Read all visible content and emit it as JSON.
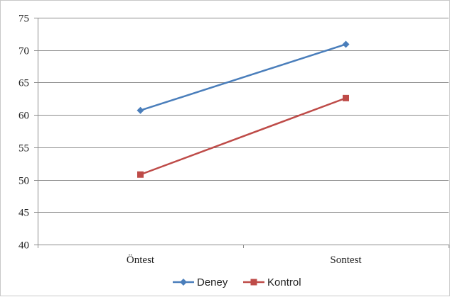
{
  "chart_data": {
    "type": "line",
    "categories": [
      "Öntest",
      "Sontest"
    ],
    "series": [
      {
        "name": "Deney",
        "values": [
          60.7,
          70.9
        ],
        "color": "#4a7ebb",
        "marker": "diamond"
      },
      {
        "name": "Kontrol",
        "values": [
          50.8,
          62.6
        ],
        "color": "#be4b48",
        "marker": "square"
      }
    ],
    "ylim": [
      40,
      75
    ],
    "yticks": [
      40,
      45,
      50,
      55,
      60,
      65,
      70,
      75
    ],
    "grid": true,
    "legend_position": "bottom"
  }
}
